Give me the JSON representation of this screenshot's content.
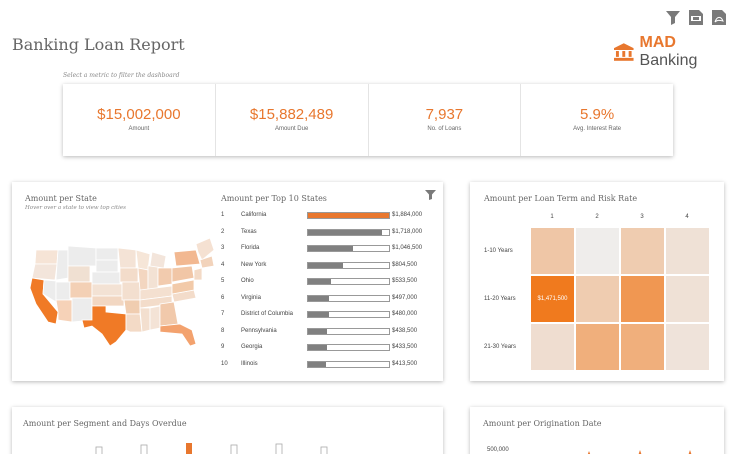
{
  "report_title": "Banking Loan Report",
  "toolbar": {
    "icons": [
      "filter-icon",
      "ppt-export-icon",
      "pdf-export-icon"
    ]
  },
  "brand": {
    "prefix": "MAD",
    "suffix": " Banking",
    "icon": "bank-icon",
    "color": "#e8772e"
  },
  "kpi_hint": "Select a metric to filter the dashboard",
  "kpis": [
    {
      "value": "$15,002,000",
      "label": "Amount"
    },
    {
      "value": "$15,882,489",
      "label": "Amount Due"
    },
    {
      "value": "7,937",
      "label": "No. of Loans"
    },
    {
      "value": "5.9%",
      "label": "Avg. Interest Rate"
    }
  ],
  "state_panel": {
    "title": "Amount per State",
    "subtitle": "Hover over a state to view top cities"
  },
  "top10": {
    "title": "Amount per Top 10 States",
    "rows": [
      {
        "rank": "1",
        "state": "California",
        "amount": "$1,884,000",
        "value": 1884000,
        "highlight": true
      },
      {
        "rank": "2",
        "state": "Texas",
        "amount": "$1,718,000",
        "value": 1718000,
        "highlight": false
      },
      {
        "rank": "3",
        "state": "Florida",
        "amount": "$1,046,500",
        "value": 1046500,
        "highlight": false
      },
      {
        "rank": "4",
        "state": "New York",
        "amount": "$804,500",
        "value": 804500,
        "highlight": false
      },
      {
        "rank": "5",
        "state": "Ohio",
        "amount": "$533,500",
        "value": 533500,
        "highlight": false
      },
      {
        "rank": "6",
        "state": "Virginia",
        "amount": "$497,000",
        "value": 497000,
        "highlight": false
      },
      {
        "rank": "7",
        "state": "District of Columbia",
        "amount": "$480,000",
        "value": 480000,
        "highlight": false
      },
      {
        "rank": "8",
        "state": "Pennsylvania",
        "amount": "$438,500",
        "value": 438500,
        "highlight": false
      },
      {
        "rank": "9",
        "state": "Georgia",
        "amount": "$433,500",
        "value": 433500,
        "highlight": false
      },
      {
        "rank": "10",
        "state": "Illinois",
        "amount": "$413,500",
        "value": 413500,
        "highlight": false
      }
    ]
  },
  "heatmap": {
    "title": "Amount per Loan Term and Risk Rate",
    "columns": [
      "1",
      "2",
      "3",
      "4"
    ],
    "rows": [
      "1-10 Years",
      "11-20 Years",
      "21-30 Years"
    ],
    "intensity": [
      [
        0.35,
        0.02,
        0.3,
        0.12
      ],
      [
        1.0,
        0.3,
        0.75,
        0.12
      ],
      [
        0.15,
        0.55,
        0.55,
        0.1
      ]
    ],
    "cell_label": "$1,471,500"
  },
  "segment_panel": {
    "title": "Amount per Segment and Days Overdue"
  },
  "origination_panel": {
    "title": "Amount per Origination Date",
    "y_tick": "500,000"
  },
  "colors": {
    "accent": "#e8772e",
    "bar_gray": "#808080"
  }
}
